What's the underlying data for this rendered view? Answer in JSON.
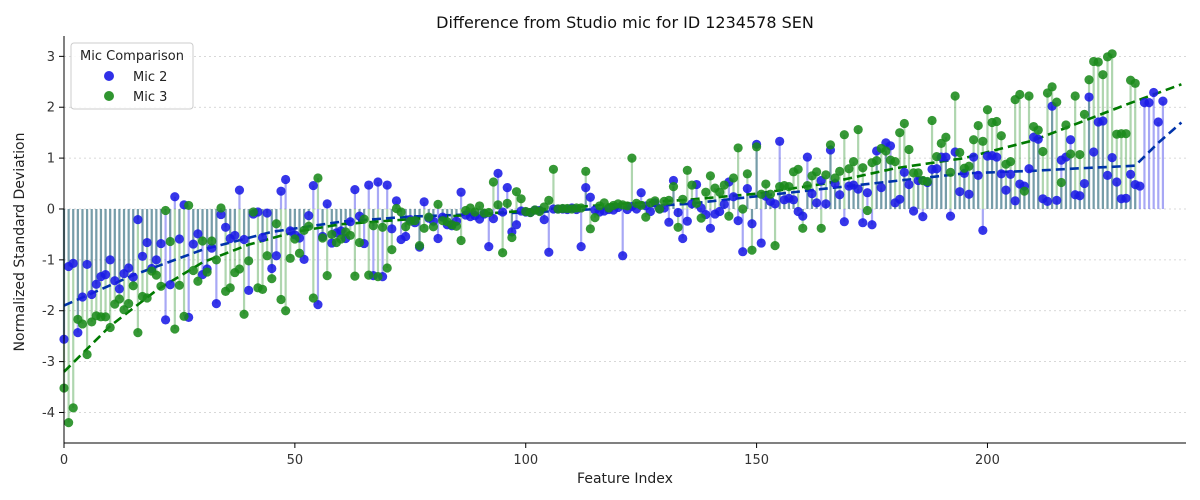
{
  "chart_data": {
    "type": "scatter",
    "title": "Difference from Studio mic for ID 1234578 SEN",
    "xlabel": "Feature Index",
    "ylabel": "Normalized Standard Deviation",
    "xlim": [
      0,
      243
    ],
    "ylim": [
      -4.6,
      3.4
    ],
    "x_ticks": [
      0,
      50,
      100,
      150,
      200
    ],
    "y_ticks": [
      -4,
      -3,
      -2,
      -1,
      0,
      1,
      2,
      3
    ],
    "grid": "horizontal dotted",
    "legend": {
      "title": "Mic Comparison",
      "placement": "top-left",
      "entries": [
        "Mic 2",
        "Mic 3"
      ]
    },
    "marker_style": "stem",
    "series": [
      {
        "name": "Mic 2",
        "color": "#1a1ae6",
        "trend_color": "#0033aa",
        "trend_style": "dashed",
        "values": [
          -2.56,
          -1.13,
          -1.07,
          -2.43,
          -1.73,
          -1.09,
          -1.68,
          -1.48,
          -1.33,
          -1.29,
          -1.0,
          -1.41,
          -1.57,
          -1.27,
          -1.16,
          -1.34,
          -0.21,
          -0.93,
          -0.66,
          -1.17,
          -1.0,
          -0.68,
          -2.18,
          -1.49,
          0.24,
          -0.59,
          0.08,
          -2.13,
          -0.69,
          -0.49,
          -1.29,
          -1.18,
          -0.77,
          -1.86,
          -0.11,
          -0.36,
          -0.58,
          -0.52,
          0.37,
          -0.6,
          -1.6,
          -0.1,
          -0.06,
          -0.56,
          -0.08,
          -1.17,
          -0.92,
          0.35,
          0.58,
          -0.43,
          -0.51,
          -0.57,
          -0.99,
          -0.13,
          0.46,
          -1.88,
          -0.54,
          0.1,
          -0.67,
          -0.47,
          -0.43,
          -0.58,
          -0.25,
          0.38,
          -0.14,
          -0.68,
          0.47,
          -1.31,
          0.53,
          -1.33,
          0.47,
          -0.39,
          0.16,
          -0.6,
          -0.54,
          -0.21,
          -0.27,
          -0.75,
          0.14,
          -0.18,
          -0.24,
          -0.58,
          -0.16,
          -0.31,
          -0.33,
          -0.24,
          0.33,
          -0.12,
          -0.15,
          -0.13,
          -0.2,
          -0.1,
          -0.74,
          -0.19,
          0.7,
          -0.06,
          0.42,
          -0.45,
          -0.31,
          -0.04,
          -0.06,
          -0.07,
          -0.02,
          -0.03,
          -0.21,
          -0.85,
          0.0,
          0.0,
          0.0,
          -0.01,
          0.02,
          -0.01,
          -0.74,
          0.42,
          0.23,
          -0.02,
          -0.06,
          -0.04,
          -0.01,
          -0.02,
          0.03,
          -0.92,
          -0.01,
          0.05,
          0.0,
          0.32,
          0.06,
          -0.05,
          0.12,
          0.0,
          0.02,
          -0.26,
          0.56,
          -0.07,
          -0.58,
          -0.24,
          0.1,
          0.48,
          0.02,
          -0.11,
          -0.38,
          -0.1,
          -0.05,
          0.09,
          0.53,
          0.24,
          -0.23,
          -0.84,
          0.4,
          -0.29,
          1.27,
          -0.67,
          0.25,
          0.15,
          0.1,
          1.33,
          0.18,
          0.21,
          0.18,
          -0.05,
          -0.14,
          1.02,
          0.3,
          0.12,
          0.56,
          0.1,
          1.16,
          0.5,
          0.28,
          -0.25,
          0.45,
          0.47,
          0.39,
          -0.27,
          0.32,
          -0.31,
          1.14,
          0.42,
          1.3,
          1.24,
          0.12,
          0.19,
          0.72,
          0.48,
          -0.04,
          0.56,
          -0.15,
          0.52,
          0.78,
          0.79,
          1.02,
          1.02,
          -0.14,
          1.12,
          0.34,
          0.7,
          0.29,
          1.02,
          0.66,
          -0.42,
          1.04,
          1.05,
          1.02,
          0.69,
          0.37,
          0.68,
          0.16,
          0.49,
          0.45,
          0.79,
          1.41,
          1.37,
          0.2,
          0.15,
          2.02,
          0.17,
          0.96,
          1.02,
          1.36,
          0.28,
          0.26,
          0.5,
          2.2,
          1.12,
          1.71,
          1.73,
          0.66,
          1.01,
          0.53,
          0.2,
          0.21,
          0.68,
          0.48,
          0.45,
          2.09,
          2.09,
          2.29,
          1.71,
          2.12
        ],
        "trend": [
          [
            0,
            -1.9
          ],
          [
            15,
            -1.3
          ],
          [
            30,
            -0.8
          ],
          [
            45,
            -0.45
          ],
          [
            60,
            -0.25
          ],
          [
            75,
            -0.15
          ],
          [
            90,
            -0.1
          ],
          [
            105,
            -0.05
          ],
          [
            120,
            0.02
          ],
          [
            135,
            0.1
          ],
          [
            150,
            0.25
          ],
          [
            165,
            0.4
          ],
          [
            180,
            0.55
          ],
          [
            195,
            0.7
          ],
          [
            210,
            0.75
          ],
          [
            220,
            0.8
          ],
          [
            232,
            0.85
          ],
          [
            237,
            1.3
          ],
          [
            242,
            1.7
          ]
        ]
      },
      {
        "name": "Mic 3",
        "color": "#1a8a1a",
        "trend_color": "#007a00",
        "trend_style": "dashed",
        "values": [
          -3.52,
          -4.2,
          -3.91,
          -2.17,
          -2.26,
          -2.86,
          -2.22,
          -2.1,
          -2.12,
          -2.12,
          -2.33,
          -1.87,
          -1.77,
          -1.98,
          -1.86,
          -1.51,
          -2.43,
          -1.72,
          -1.75,
          -1.22,
          -1.3,
          -1.52,
          -0.03,
          -0.64,
          -2.36,
          -1.5,
          -2.11,
          0.07,
          -1.21,
          -1.42,
          -0.63,
          -1.24,
          -0.63,
          -1.0,
          0.02,
          -1.62,
          -1.55,
          -1.25,
          -1.18,
          -2.07,
          -1.02,
          -0.06,
          -1.55,
          -1.58,
          -0.92,
          -1.37,
          -0.29,
          -1.78,
          -2.0,
          -0.97,
          -0.59,
          -0.87,
          -0.42,
          -0.34,
          -1.75,
          0.61,
          -0.57,
          -1.31,
          -0.5,
          -0.66,
          -0.59,
          -0.45,
          -0.52,
          -1.32,
          -0.66,
          -0.2,
          -1.3,
          -0.33,
          -1.33,
          -0.36,
          -1.16,
          -0.8,
          0.01,
          -0.06,
          -0.35,
          -0.24,
          -0.23,
          -0.72,
          -0.38,
          -0.16,
          -0.35,
          0.09,
          -0.23,
          -0.25,
          -0.31,
          -0.34,
          -0.62,
          -0.03,
          0.02,
          -0.06,
          0.06,
          -0.08,
          -0.07,
          0.53,
          0.08,
          -0.86,
          0.11,
          -0.56,
          0.34,
          0.2,
          -0.05,
          -0.07,
          -0.02,
          -0.05,
          0.04,
          0.17,
          0.78,
          0.0,
          0.01,
          0.01,
          0.0,
          0.02,
          0.02,
          0.74,
          -0.39,
          -0.17,
          0.06,
          0.12,
          0.02,
          0.07,
          0.1,
          0.08,
          0.06,
          1.0,
          0.11,
          0.07,
          -0.16,
          0.12,
          0.16,
          0.0,
          0.15,
          0.17,
          0.44,
          -0.36,
          0.19,
          0.76,
          0.47,
          0.11,
          -0.18,
          0.33,
          0.65,
          0.41,
          0.33,
          0.47,
          -0.14,
          0.61,
          1.2,
          0.0,
          0.69,
          -0.81,
          1.22,
          0.29,
          0.49,
          0.29,
          -0.72,
          0.44,
          0.46,
          0.44,
          0.73,
          0.78,
          -0.38,
          0.46,
          0.65,
          0.73,
          -0.38,
          0.67,
          1.26,
          0.61,
          0.74,
          1.46,
          0.79,
          0.93,
          1.56,
          0.81,
          -0.03,
          0.91,
          0.95,
          1.19,
          1.14,
          0.96,
          0.93,
          1.5,
          1.68,
          1.17,
          0.71,
          0.71,
          0.56,
          0.54,
          1.74,
          1.03,
          1.29,
          1.41,
          0.72,
          2.22,
          1.11,
          0.8,
          0.84,
          1.36,
          1.64,
          1.33,
          1.95,
          1.7,
          1.72,
          1.44,
          0.88,
          0.93,
          2.15,
          2.25,
          0.35,
          2.22,
          1.62,
          1.55,
          1.13,
          2.28,
          2.4,
          2.1,
          0.52,
          1.65,
          1.08,
          2.22,
          1.07,
          1.86,
          2.54,
          2.9,
          2.89,
          2.64,
          2.99,
          3.05,
          1.47,
          1.48,
          1.48,
          2.53,
          2.47
        ],
        "trend": [
          [
            0,
            -3.2
          ],
          [
            10,
            -2.3
          ],
          [
            20,
            -1.6
          ],
          [
            30,
            -1.05
          ],
          [
            40,
            -0.7
          ],
          [
            50,
            -0.45
          ],
          [
            60,
            -0.3
          ],
          [
            75,
            -0.2
          ],
          [
            90,
            -0.1
          ],
          [
            105,
            0.0
          ],
          [
            120,
            0.1
          ],
          [
            135,
            0.18
          ],
          [
            150,
            0.3
          ],
          [
            165,
            0.5
          ],
          [
            180,
            0.8
          ],
          [
            195,
            1.0
          ],
          [
            210,
            1.35
          ],
          [
            220,
            1.7
          ],
          [
            230,
            2.05
          ],
          [
            242,
            2.45
          ]
        ]
      }
    ]
  }
}
